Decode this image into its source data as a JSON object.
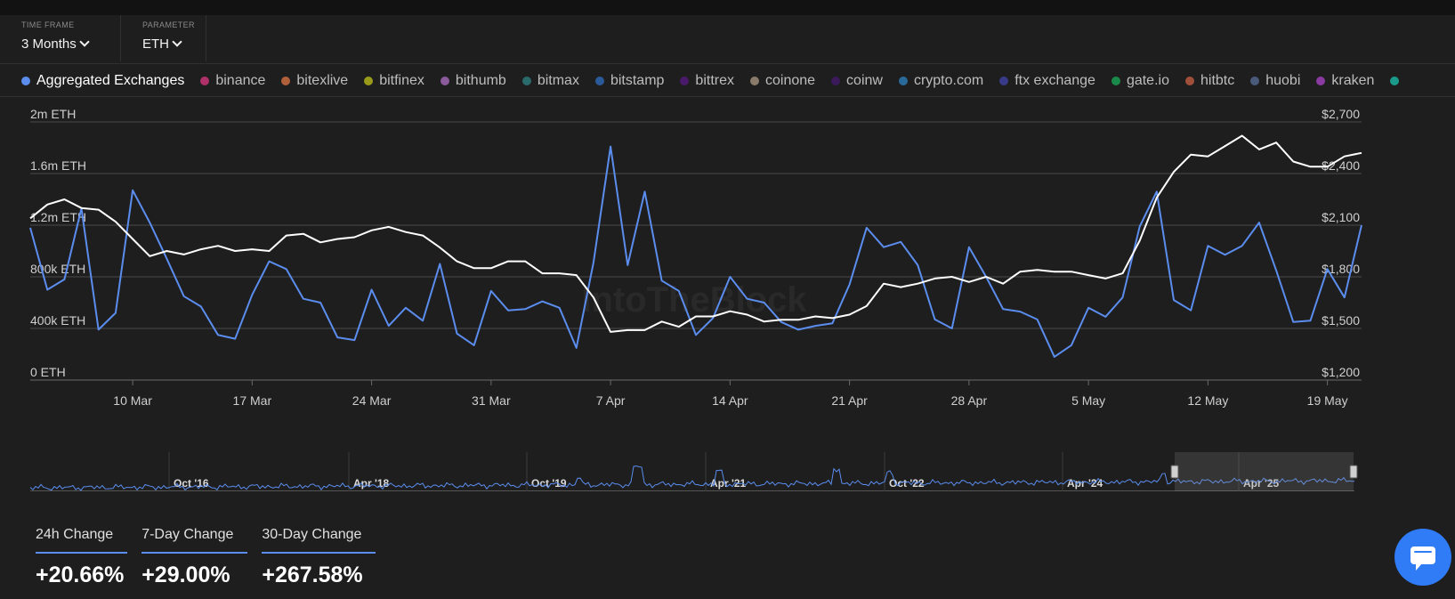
{
  "controls": {
    "timeframe": {
      "label": "TIME FRAME",
      "value": "3 Months"
    },
    "parameter": {
      "label": "PARAMETER",
      "value": "ETH"
    }
  },
  "legend": [
    {
      "label": "Aggregated Exchanges",
      "color": "#5b8def",
      "active": true
    },
    {
      "label": "binance",
      "color": "#b0306a"
    },
    {
      "label": "bitexlive",
      "color": "#b0603a"
    },
    {
      "label": "bitfinex",
      "color": "#9a9a1a"
    },
    {
      "label": "bithumb",
      "color": "#8a5a9a"
    },
    {
      "label": "bitmax",
      "color": "#2a6a6a"
    },
    {
      "label": "bitstamp",
      "color": "#2a5a9a"
    },
    {
      "label": "bittrex",
      "color": "#4a1a6a"
    },
    {
      "label": "coinone",
      "color": "#8a7a6a"
    },
    {
      "label": "coinw",
      "color": "#3a1a5a"
    },
    {
      "label": "crypto.com",
      "color": "#2a6a9a"
    },
    {
      "label": "ftx exchange",
      "color": "#3a3a8a"
    },
    {
      "label": "gate.io",
      "color": "#1a8a4a"
    },
    {
      "label": "hitbtc",
      "color": "#a0503a"
    },
    {
      "label": "huobi",
      "color": "#4a5a7a"
    },
    {
      "label": "kraken",
      "color": "#8a3aa0"
    },
    {
      "label": "",
      "color": "#1a9a8a"
    }
  ],
  "chart_data": {
    "type": "line",
    "watermark": "IntoTheBlock",
    "x_ticks": [
      "10 Mar",
      "17 Mar",
      "24 Mar",
      "31 Mar",
      "7 Apr",
      "14 Apr",
      "21 Apr",
      "28 Apr",
      "5 May",
      "12 May",
      "19 May"
    ],
    "y_left": {
      "ticks": [
        "0 ETH",
        "400k ETH",
        "800k ETH",
        "1.2m ETH",
        "1.6m ETH",
        "2m ETH"
      ],
      "min": 0,
      "max": 2000000
    },
    "y_right": {
      "ticks": [
        "$1,200",
        "$1,500",
        "$1,800",
        "$2,100",
        "$2,400",
        "$2,700"
      ],
      "min": 1200,
      "max": 2700
    },
    "x_range": [
      "2025-03-04",
      "2025-05-21"
    ],
    "series": [
      {
        "name": "Aggregated Exchanges",
        "axis": "left",
        "color": "#5b8def",
        "x": [
          "2025-03-04",
          "2025-03-05",
          "2025-03-06",
          "2025-03-07",
          "2025-03-08",
          "2025-03-09",
          "2025-03-10",
          "2025-03-11",
          "2025-03-12",
          "2025-03-13",
          "2025-03-14",
          "2025-03-15",
          "2025-03-16",
          "2025-03-17",
          "2025-03-18",
          "2025-03-19",
          "2025-03-20",
          "2025-03-21",
          "2025-03-22",
          "2025-03-23",
          "2025-03-24",
          "2025-03-25",
          "2025-03-26",
          "2025-03-27",
          "2025-03-28",
          "2025-03-29",
          "2025-03-30",
          "2025-03-31",
          "2025-04-01",
          "2025-04-02",
          "2025-04-03",
          "2025-04-04",
          "2025-04-05",
          "2025-04-06",
          "2025-04-07",
          "2025-04-08",
          "2025-04-09",
          "2025-04-10",
          "2025-04-11",
          "2025-04-12",
          "2025-04-13",
          "2025-04-14",
          "2025-04-15",
          "2025-04-16",
          "2025-04-17",
          "2025-04-18",
          "2025-04-19",
          "2025-04-20",
          "2025-04-21",
          "2025-04-22",
          "2025-04-23",
          "2025-04-24",
          "2025-04-25",
          "2025-04-26",
          "2025-04-27",
          "2025-04-28",
          "2025-04-29",
          "2025-04-30",
          "2025-05-01",
          "2025-05-02",
          "2025-05-03",
          "2025-05-04",
          "2025-05-05",
          "2025-05-06",
          "2025-05-07",
          "2025-05-08",
          "2025-05-09",
          "2025-05-10",
          "2025-05-11",
          "2025-05-12",
          "2025-05-13",
          "2025-05-14",
          "2025-05-15",
          "2025-05-16",
          "2025-05-17",
          "2025-05-18",
          "2025-05-19",
          "2025-05-20",
          "2025-05-21"
        ],
        "values": [
          1180000,
          700000,
          780000,
          1330000,
          390000,
          520000,
          1470000,
          1220000,
          940000,
          650000,
          570000,
          350000,
          320000,
          660000,
          920000,
          860000,
          630000,
          600000,
          330000,
          310000,
          700000,
          420000,
          560000,
          460000,
          900000,
          360000,
          270000,
          690000,
          540000,
          550000,
          610000,
          560000,
          250000,
          910000,
          1810000,
          890000,
          1460000,
          770000,
          690000,
          350000,
          480000,
          800000,
          630000,
          600000,
          450000,
          390000,
          420000,
          440000,
          740000,
          1180000,
          1030000,
          1070000,
          890000,
          470000,
          400000,
          1030000,
          800000,
          550000,
          530000,
          470000,
          180000,
          270000,
          560000,
          490000,
          640000,
          1190000,
          1460000,
          620000,
          540000,
          1040000,
          970000,
          1040000,
          1220000,
          850000,
          450000,
          460000,
          860000,
          640000,
          1200000
        ]
      },
      {
        "name": "Price",
        "axis": "right",
        "color": "#ffffff",
        "x": [
          "2025-03-04",
          "2025-03-05",
          "2025-03-06",
          "2025-03-07",
          "2025-03-08",
          "2025-03-09",
          "2025-03-10",
          "2025-03-11",
          "2025-03-12",
          "2025-03-13",
          "2025-03-14",
          "2025-03-15",
          "2025-03-16",
          "2025-03-17",
          "2025-03-18",
          "2025-03-19",
          "2025-03-20",
          "2025-03-21",
          "2025-03-22",
          "2025-03-23",
          "2025-03-24",
          "2025-03-25",
          "2025-03-26",
          "2025-03-27",
          "2025-03-28",
          "2025-03-29",
          "2025-03-30",
          "2025-03-31",
          "2025-04-01",
          "2025-04-02",
          "2025-04-03",
          "2025-04-04",
          "2025-04-05",
          "2025-04-06",
          "2025-04-07",
          "2025-04-08",
          "2025-04-09",
          "2025-04-10",
          "2025-04-11",
          "2025-04-12",
          "2025-04-13",
          "2025-04-14",
          "2025-04-15",
          "2025-04-16",
          "2025-04-17",
          "2025-04-18",
          "2025-04-19",
          "2025-04-20",
          "2025-04-21",
          "2025-04-22",
          "2025-04-23",
          "2025-04-24",
          "2025-04-25",
          "2025-04-26",
          "2025-04-27",
          "2025-04-28",
          "2025-04-29",
          "2025-04-30",
          "2025-05-01",
          "2025-05-02",
          "2025-05-03",
          "2025-05-04",
          "2025-05-05",
          "2025-05-06",
          "2025-05-07",
          "2025-05-08",
          "2025-05-09",
          "2025-05-10",
          "2025-05-11",
          "2025-05-12",
          "2025-05-13",
          "2025-05-14",
          "2025-05-15",
          "2025-05-16",
          "2025-05-17",
          "2025-05-18",
          "2025-05-19",
          "2025-05-20",
          "2025-05-21"
        ],
        "values": [
          2140,
          2220,
          2250,
          2200,
          2190,
          2120,
          2020,
          1920,
          1950,
          1930,
          1960,
          1980,
          1950,
          1960,
          1950,
          2040,
          2050,
          2000,
          2020,
          2030,
          2070,
          2090,
          2060,
          2040,
          1970,
          1890,
          1850,
          1850,
          1890,
          1890,
          1820,
          1820,
          1810,
          1680,
          1480,
          1490,
          1490,
          1540,
          1510,
          1570,
          1570,
          1600,
          1580,
          1540,
          1550,
          1550,
          1570,
          1560,
          1580,
          1630,
          1760,
          1740,
          1760,
          1790,
          1800,
          1770,
          1800,
          1760,
          1830,
          1840,
          1830,
          1830,
          1810,
          1790,
          1820,
          2010,
          2260,
          2410,
          2510,
          2500,
          2560,
          2620,
          2540,
          2580,
          2470,
          2440,
          2440,
          2500,
          2520
        ]
      }
    ],
    "navigator": {
      "labels": [
        "Oct '16",
        "Apr '18",
        "Oct '19",
        "Apr '21",
        "Oct '22",
        "Apr '24",
        "Apr '25"
      ]
    }
  },
  "stats": [
    {
      "label": "24h Change",
      "value": "+20.66%"
    },
    {
      "label": "7-Day Change",
      "value": "+29.00%"
    },
    {
      "label": "30-Day Change",
      "value": "+267.58%"
    }
  ]
}
